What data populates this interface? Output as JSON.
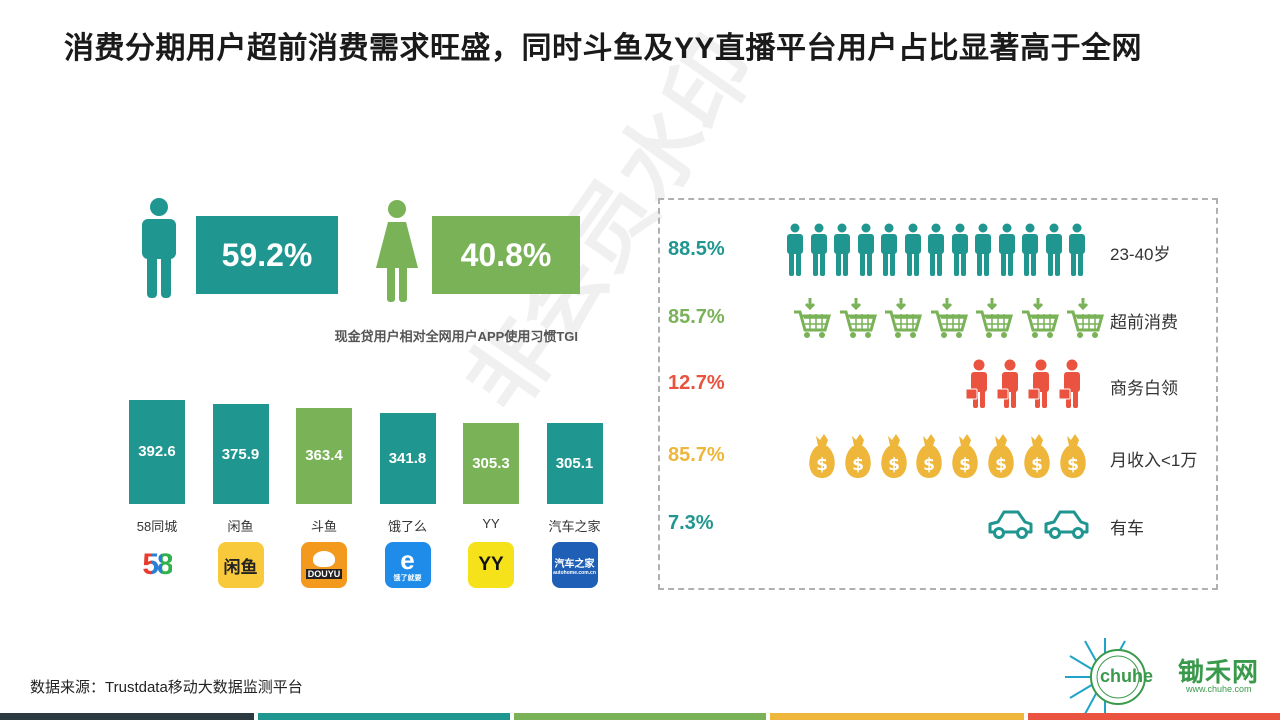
{
  "title": "消费分期用户超前消费需求旺盛，同时斗鱼及YY直播平台用户占比显著高于全网",
  "gender": {
    "male_value": "59.2%",
    "female_value": "40.8%"
  },
  "tgi_label": "现金贷用户相对全网用户APP使用习惯TGI",
  "chart_data": {
    "type": "bar",
    "categories": [
      "58同城",
      "闲鱼",
      "斗鱼",
      "饿了么",
      "YY",
      "汽车之家"
    ],
    "values": [
      392.6,
      375.9,
      363.4,
      341.8,
      305.3,
      305.1
    ],
    "value_labels": [
      "392.6",
      "375.9",
      "363.4",
      "341.8",
      "305.3",
      "305.1"
    ],
    "bar_colors": [
      "#1f968f",
      "#1f968f",
      "#79b257",
      "#1f968f",
      "#79b257",
      "#1f968f"
    ]
  },
  "app_logos": [
    {
      "name": "58-logo",
      "text": "58"
    },
    {
      "name": "xianyu-logo",
      "text": "闲鱼"
    },
    {
      "name": "douyu-logo",
      "text": "DOUYU"
    },
    {
      "name": "eleme-logo",
      "text": "e",
      "subtext": "饿了就要"
    },
    {
      "name": "yy-logo",
      "text": "YY"
    },
    {
      "name": "autohome-logo",
      "text": "汽车之家",
      "subtext": "autohome.com.cn"
    }
  ],
  "profile": [
    {
      "pct": "88.5%",
      "label": "23-40岁",
      "color": "#1f968f",
      "icon": "person-icon",
      "count": 13
    },
    {
      "pct": "85.7%",
      "label": "超前消费",
      "color": "#79b257",
      "icon": "shopping-cart-icon",
      "count": 7
    },
    {
      "pct": "12.7%",
      "label": "商务白领",
      "color": "#e9533f",
      "icon": "businessman-icon",
      "count": 4
    },
    {
      "pct": "85.7%",
      "label": "月收入<1万",
      "color": "#eeb63a",
      "icon": "money-bag-icon",
      "count": 8
    },
    {
      "pct": "7.3%",
      "label": "有车",
      "color": "#1f968f",
      "icon": "car-icon",
      "count": 2
    }
  ],
  "watermark": "非会员水印",
  "footer": "数据来源：Trustdata移动大数据监测平台",
  "brand": {
    "name": "锄禾网",
    "url": "www.chuhe.com",
    "seal_text": "chuhe"
  },
  "colors": {
    "teal": "#1f968f",
    "green": "#79b257",
    "red": "#e9533f",
    "yellow": "#eeb63a",
    "dark": "#2b3940",
    "title": "#1a1a1a"
  }
}
